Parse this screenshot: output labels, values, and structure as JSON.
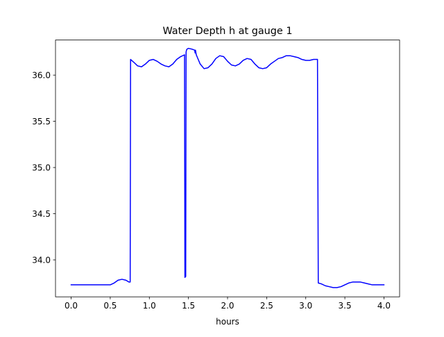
{
  "chart_data": {
    "type": "line",
    "title": "Water Depth h at gauge 1",
    "xlabel": "hours",
    "ylabel": "",
    "xlim": [
      -0.2,
      4.2
    ],
    "ylim": [
      33.6,
      36.38
    ],
    "x_ticks": [
      0.0,
      0.5,
      1.0,
      1.5,
      2.0,
      2.5,
      3.0,
      3.5,
      4.0
    ],
    "x_tick_labels": [
      "0.0",
      "0.5",
      "1.0",
      "1.5",
      "2.0",
      "2.5",
      "3.0",
      "3.5",
      "4.0"
    ],
    "y_ticks": [
      34.0,
      34.5,
      35.0,
      35.5,
      36.0
    ],
    "y_tick_labels": [
      "34.0",
      "34.5",
      "35.0",
      "35.5",
      "36.0"
    ],
    "grid": false,
    "legend": "none",
    "series": [
      {
        "color": "#0000ff",
        "x": [
          0.0,
          0.1,
          0.2,
          0.3,
          0.4,
          0.5,
          0.55,
          0.6,
          0.65,
          0.7,
          0.74,
          0.755,
          0.76,
          0.8,
          0.85,
          0.9,
          0.95,
          1.0,
          1.05,
          1.1,
          1.15,
          1.2,
          1.25,
          1.3,
          1.35,
          1.4,
          1.45,
          1.455,
          1.46,
          1.465,
          1.47,
          1.475,
          1.48,
          1.5,
          1.55,
          1.58,
          1.585,
          1.59,
          1.6,
          1.65,
          1.7,
          1.75,
          1.8,
          1.85,
          1.9,
          1.95,
          2.0,
          2.05,
          2.1,
          2.15,
          2.2,
          2.25,
          2.3,
          2.35,
          2.4,
          2.45,
          2.5,
          2.55,
          2.6,
          2.65,
          2.7,
          2.75,
          2.8,
          2.85,
          2.9,
          2.95,
          3.0,
          3.05,
          3.1,
          3.15,
          3.16,
          3.2,
          3.25,
          3.3,
          3.35,
          3.4,
          3.45,
          3.5,
          3.55,
          3.6,
          3.65,
          3.7,
          3.75,
          3.8,
          3.85,
          3.9,
          3.95,
          4.0
        ],
        "y": [
          33.73,
          33.73,
          33.73,
          33.73,
          33.73,
          33.73,
          33.75,
          33.78,
          33.79,
          33.78,
          33.76,
          33.76,
          36.17,
          36.14,
          36.1,
          36.09,
          36.12,
          36.16,
          36.17,
          36.15,
          36.12,
          36.1,
          36.09,
          36.12,
          36.17,
          36.2,
          36.22,
          33.81,
          33.82,
          33.82,
          36.25,
          36.27,
          36.28,
          36.29,
          36.28,
          36.27,
          36.24,
          36.27,
          36.22,
          36.12,
          36.07,
          36.08,
          36.12,
          36.18,
          36.21,
          36.2,
          36.15,
          36.11,
          36.1,
          36.12,
          36.16,
          36.18,
          36.17,
          36.12,
          36.08,
          36.07,
          36.08,
          36.12,
          36.15,
          36.18,
          36.19,
          36.21,
          36.21,
          36.2,
          36.19,
          36.17,
          36.16,
          36.16,
          36.17,
          36.17,
          33.75,
          33.74,
          33.72,
          33.71,
          33.7,
          33.7,
          33.71,
          33.73,
          33.75,
          33.76,
          33.76,
          33.76,
          33.75,
          33.74,
          33.73,
          33.73,
          33.73,
          33.73
        ]
      }
    ]
  }
}
